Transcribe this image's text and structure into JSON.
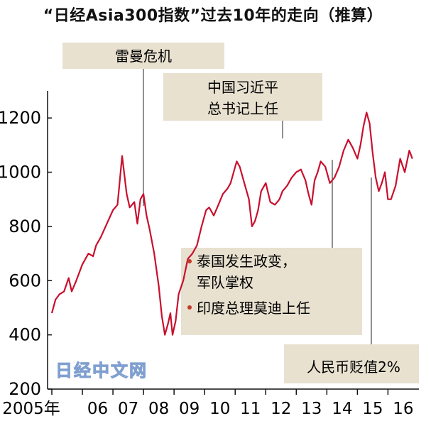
{
  "title": "“日经Asia300指数”过去10年的走向（推算）",
  "watermark": "日经中文网",
  "annotations": [
    {
      "id": "lehman",
      "lines": [
        "雷曼危机"
      ]
    },
    {
      "id": "xi",
      "lines": [
        "中国习近平",
        "总书记上任"
      ]
    },
    {
      "id": "thai",
      "lines": [
        "泰国发生政变，",
        "军队掌权"
      ],
      "bullet": true
    },
    {
      "id": "modi",
      "lines": [
        "印度总理莫迪上任"
      ],
      "bullet": true
    },
    {
      "id": "rmb",
      "lines": [
        "人民币贬值2%"
      ]
    }
  ],
  "chart_data": {
    "type": "line",
    "title": "“日经Asia300指数”过去10年的走向（推算）",
    "xlabel": "",
    "ylabel": "",
    "ylim": [
      200,
      1300
    ],
    "yticks": [
      200,
      400,
      600,
      800,
      1000,
      1200
    ],
    "xlim": [
      2005.0,
      2016.85
    ],
    "xtick_labels": [
      "2005年",
      "06",
      "07",
      "08",
      "09",
      "10",
      "11",
      "12",
      "13",
      "14",
      "15",
      "16"
    ],
    "xtick_values": [
      2005.0,
      2006.0,
      2007.0,
      2008.0,
      2009.0,
      2010.0,
      2011.0,
      2012.0,
      2013.0,
      2014.0,
      2015.0,
      2016.0
    ],
    "grid": false,
    "series": [
      {
        "color": "#c8102e",
        "x": [
          2005.0,
          2005.12,
          2005.25,
          2005.4,
          2005.55,
          2005.65,
          2005.8,
          2006.0,
          2006.2,
          2006.35,
          2006.45,
          2006.6,
          2006.8,
          2007.0,
          2007.15,
          2007.3,
          2007.45,
          2007.55,
          2007.7,
          2007.8,
          2007.9,
          2008.0,
          2008.1,
          2008.2,
          2008.35,
          2008.5,
          2008.6,
          2008.7,
          2008.8,
          2008.88,
          2008.95,
          2009.05,
          2009.15,
          2009.3,
          2009.45,
          2009.6,
          2009.75,
          2009.9,
          2010.05,
          2010.15,
          2010.3,
          2010.45,
          2010.6,
          2010.75,
          2010.85,
          2010.95,
          2011.05,
          2011.15,
          2011.3,
          2011.45,
          2011.55,
          2011.65,
          2011.75,
          2011.85,
          2012.0,
          2012.15,
          2012.3,
          2012.45,
          2012.55,
          2012.7,
          2012.85,
          2013.0,
          2013.15,
          2013.3,
          2013.4,
          2013.5,
          2013.6,
          2013.7,
          2013.8,
          2013.95,
          2014.1,
          2014.25,
          2014.4,
          2014.55,
          2014.7,
          2014.85,
          2015.0,
          2015.1,
          2015.2,
          2015.3,
          2015.4,
          2015.5,
          2015.6,
          2015.7,
          2015.8,
          2015.9,
          2016.0,
          2016.1,
          2016.25,
          2016.4,
          2016.55,
          2016.7,
          2016.8
        ],
        "values": [
          480,
          530,
          550,
          560,
          610,
          560,
          600,
          660,
          700,
          690,
          730,
          760,
          810,
          860,
          880,
          1060,
          920,
          870,
          890,
          810,
          900,
          920,
          840,
          790,
          700,
          580,
          470,
          400,
          440,
          480,
          400,
          450,
          550,
          600,
          680,
          700,
          730,
          800,
          860,
          870,
          840,
          880,
          920,
          940,
          960,
          1000,
          1040,
          1020,
          960,
          900,
          800,
          820,
          860,
          930,
          960,
          890,
          880,
          900,
          930,
          950,
          980,
          1000,
          1010,
          970,
          920,
          880,
          970,
          1000,
          1040,
          1020,
          960,
          980,
          1020,
          1080,
          1120,
          1090,
          1050,
          1100,
          1170,
          1220,
          1180,
          1070,
          980,
          930,
          960,
          1000,
          900,
          900,
          950,
          1050,
          1000,
          1080,
          1050
        ]
      }
    ]
  }
}
